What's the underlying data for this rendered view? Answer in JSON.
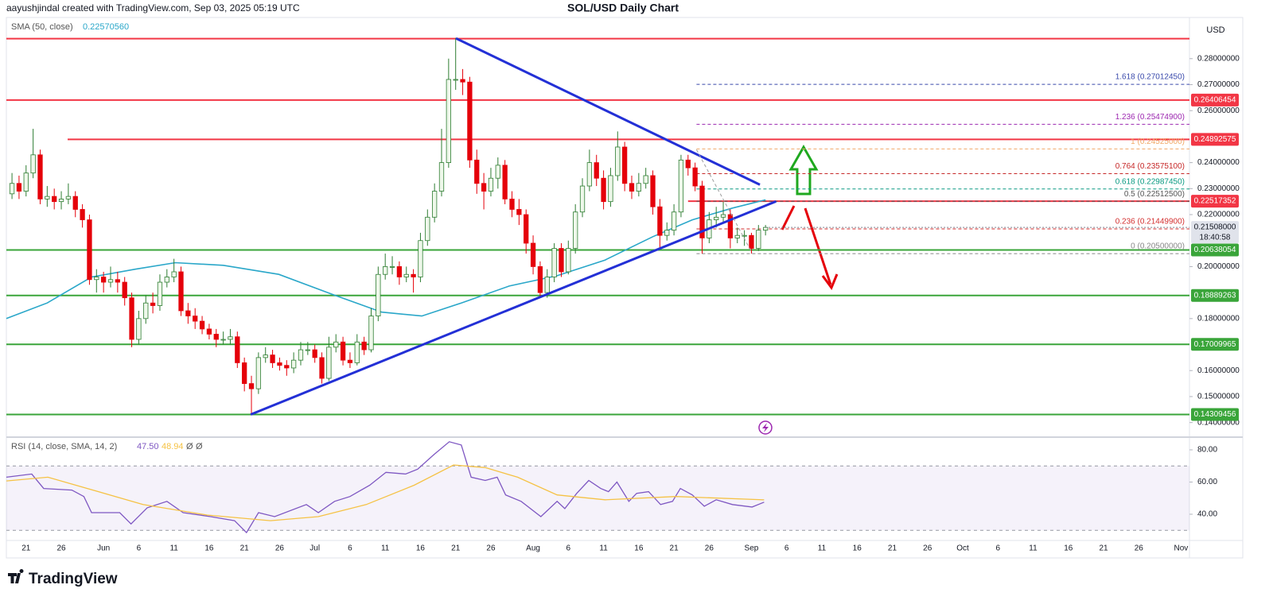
{
  "chart_data": {
    "type": "candlestick",
    "title": "SOL/USD Daily Chart",
    "attribution": "aayushjindal created with TradingView.com, Sep 03, 2025 05:19 UTC",
    "currency": "USD",
    "brand": "TradingView",
    "up_color": "#2e7d32",
    "up_fill": "#eef8ea",
    "down_color": "#e5000a",
    "xlim": [
      -0.8,
      167.2
    ],
    "xticks": [
      {
        "value": 2,
        "label": "21"
      },
      {
        "value": 7,
        "label": "26"
      },
      {
        "value": 13,
        "label": "Jun"
      },
      {
        "value": 18,
        "label": "6"
      },
      {
        "value": 23,
        "label": "11"
      },
      {
        "value": 28,
        "label": "16"
      },
      {
        "value": 33,
        "label": "21"
      },
      {
        "value": 38,
        "label": "26"
      },
      {
        "value": 43,
        "label": "Jul"
      },
      {
        "value": 48,
        "label": "6"
      },
      {
        "value": 53,
        "label": "11"
      },
      {
        "value": 58,
        "label": "16"
      },
      {
        "value": 63,
        "label": "21"
      },
      {
        "value": 68,
        "label": "26"
      },
      {
        "value": 74,
        "label": "Aug"
      },
      {
        "value": 79,
        "label": "6"
      },
      {
        "value": 84,
        "label": "11"
      },
      {
        "value": 89,
        "label": "16"
      },
      {
        "value": 94,
        "label": "21"
      },
      {
        "value": 99,
        "label": "26"
      },
      {
        "value": 105,
        "label": "Sep"
      },
      {
        "value": 110,
        "label": "6"
      },
      {
        "value": 115,
        "label": "11"
      },
      {
        "value": 120,
        "label": "16"
      },
      {
        "value": 125,
        "label": "21"
      },
      {
        "value": 130,
        "label": "26"
      },
      {
        "value": 135,
        "label": "Oct"
      },
      {
        "value": 140,
        "label": "6"
      },
      {
        "value": 145,
        "label": "11"
      },
      {
        "value": 150,
        "label": "16"
      },
      {
        "value": 155,
        "label": "21"
      },
      {
        "value": 160,
        "label": "26"
      },
      {
        "value": 166,
        "label": "Nov"
      }
    ],
    "ylim": [
      0.135,
      0.294
    ],
    "yticks": [
      {
        "value": 0.28,
        "label": "0.28000000"
      },
      {
        "value": 0.27,
        "label": "0.27000000"
      },
      {
        "value": 0.26,
        "label": "0.26000000"
      },
      {
        "value": 0.24,
        "label": "0.24000000"
      },
      {
        "value": 0.23,
        "label": "0.23000000"
      },
      {
        "value": 0.22,
        "label": "0.22000000"
      },
      {
        "value": 0.2,
        "label": "0.20000000"
      },
      {
        "value": 0.18,
        "label": "0.18000000"
      },
      {
        "value": 0.16,
        "label": "0.16000000"
      },
      {
        "value": 0.15,
        "label": "0.15000000"
      },
      {
        "value": 0.14,
        "label": "0.14000000"
      }
    ],
    "ohlc": [
      [
        0.228,
        0.236,
        0.226,
        0.232
      ],
      [
        0.232,
        0.235,
        0.226,
        0.229
      ],
      [
        0.229,
        0.239,
        0.227,
        0.236
      ],
      [
        0.236,
        0.253,
        0.234,
        0.243
      ],
      [
        0.243,
        0.245,
        0.224,
        0.226
      ],
      [
        0.226,
        0.231,
        0.223,
        0.227
      ],
      [
        0.227,
        0.23,
        0.222,
        0.225
      ],
      [
        0.225,
        0.229,
        0.222,
        0.226
      ],
      [
        0.226,
        0.232,
        0.224,
        0.227
      ],
      [
        0.227,
        0.229,
        0.219,
        0.222
      ],
      [
        0.222,
        0.224,
        0.215,
        0.218
      ],
      [
        0.218,
        0.22,
        0.193,
        0.195
      ],
      [
        0.195,
        0.199,
        0.19,
        0.196
      ],
      [
        0.196,
        0.198,
        0.19,
        0.194
      ],
      [
        0.194,
        0.2,
        0.192,
        0.195
      ],
      [
        0.195,
        0.198,
        0.19,
        0.194
      ],
      [
        0.194,
        0.196,
        0.185,
        0.188
      ],
      [
        0.188,
        0.19,
        0.169,
        0.172
      ],
      [
        0.172,
        0.183,
        0.17,
        0.18
      ],
      [
        0.18,
        0.189,
        0.178,
        0.186
      ],
      [
        0.186,
        0.19,
        0.182,
        0.185
      ],
      [
        0.185,
        0.197,
        0.183,
        0.194
      ],
      [
        0.194,
        0.199,
        0.192,
        0.196
      ],
      [
        0.196,
        0.203,
        0.194,
        0.198
      ],
      [
        0.198,
        0.2,
        0.181,
        0.183
      ],
      [
        0.183,
        0.186,
        0.178,
        0.181
      ],
      [
        0.181,
        0.184,
        0.176,
        0.179
      ],
      [
        0.179,
        0.181,
        0.174,
        0.176
      ],
      [
        0.176,
        0.178,
        0.172,
        0.174
      ],
      [
        0.174,
        0.176,
        0.169,
        0.172
      ],
      [
        0.172,
        0.175,
        0.17,
        0.172
      ],
      [
        0.172,
        0.176,
        0.17,
        0.173
      ],
      [
        0.173,
        0.175,
        0.161,
        0.163
      ],
      [
        0.163,
        0.165,
        0.152,
        0.155
      ],
      [
        0.155,
        0.158,
        0.143,
        0.153
      ],
      [
        0.153,
        0.167,
        0.151,
        0.165
      ],
      [
        0.165,
        0.169,
        0.163,
        0.166
      ],
      [
        0.166,
        0.168,
        0.161,
        0.163
      ],
      [
        0.163,
        0.165,
        0.16,
        0.162
      ],
      [
        0.162,
        0.164,
        0.158,
        0.161
      ],
      [
        0.161,
        0.167,
        0.159,
        0.164
      ],
      [
        0.164,
        0.171,
        0.162,
        0.168
      ],
      [
        0.168,
        0.171,
        0.166,
        0.168
      ],
      [
        0.168,
        0.17,
        0.163,
        0.165
      ],
      [
        0.165,
        0.167,
        0.155,
        0.157
      ],
      [
        0.157,
        0.173,
        0.156,
        0.169
      ],
      [
        0.169,
        0.174,
        0.167,
        0.171
      ],
      [
        0.171,
        0.173,
        0.162,
        0.164
      ],
      [
        0.164,
        0.167,
        0.161,
        0.163
      ],
      [
        0.163,
        0.174,
        0.162,
        0.171
      ],
      [
        0.171,
        0.173,
        0.166,
        0.168
      ],
      [
        0.168,
        0.184,
        0.167,
        0.181
      ],
      [
        0.181,
        0.2,
        0.179,
        0.197
      ],
      [
        0.197,
        0.205,
        0.195,
        0.2
      ],
      [
        0.2,
        0.204,
        0.197,
        0.2
      ],
      [
        0.2,
        0.202,
        0.193,
        0.196
      ],
      [
        0.196,
        0.2,
        0.194,
        0.197
      ],
      [
        0.197,
        0.199,
        0.19,
        0.196
      ],
      [
        0.196,
        0.213,
        0.194,
        0.21
      ],
      [
        0.21,
        0.222,
        0.208,
        0.219
      ],
      [
        0.219,
        0.232,
        0.217,
        0.229
      ],
      [
        0.229,
        0.253,
        0.227,
        0.24
      ],
      [
        0.24,
        0.28,
        0.238,
        0.272
      ],
      [
        0.272,
        0.288,
        0.268,
        0.272
      ],
      [
        0.272,
        0.276,
        0.266,
        0.271
      ],
      [
        0.271,
        0.273,
        0.238,
        0.241
      ],
      [
        0.241,
        0.245,
        0.228,
        0.232
      ],
      [
        0.232,
        0.236,
        0.222,
        0.229
      ],
      [
        0.229,
        0.238,
        0.227,
        0.234
      ],
      [
        0.234,
        0.242,
        0.23,
        0.239
      ],
      [
        0.239,
        0.241,
        0.224,
        0.226
      ],
      [
        0.226,
        0.229,
        0.219,
        0.222
      ],
      [
        0.222,
        0.226,
        0.216,
        0.22
      ],
      [
        0.22,
        0.222,
        0.205,
        0.209
      ],
      [
        0.209,
        0.212,
        0.197,
        0.2
      ],
      [
        0.2,
        0.202,
        0.188,
        0.19
      ],
      [
        0.19,
        0.199,
        0.188,
        0.196
      ],
      [
        0.196,
        0.209,
        0.194,
        0.207
      ],
      [
        0.207,
        0.209,
        0.196,
        0.198
      ],
      [
        0.198,
        0.21,
        0.197,
        0.207
      ],
      [
        0.207,
        0.224,
        0.205,
        0.221
      ],
      [
        0.221,
        0.234,
        0.219,
        0.231
      ],
      [
        0.231,
        0.245,
        0.229,
        0.24
      ],
      [
        0.24,
        0.243,
        0.231,
        0.234
      ],
      [
        0.234,
        0.237,
        0.222,
        0.225
      ],
      [
        0.225,
        0.238,
        0.223,
        0.235
      ],
      [
        0.235,
        0.252,
        0.233,
        0.246
      ],
      [
        0.246,
        0.248,
        0.229,
        0.232
      ],
      [
        0.232,
        0.235,
        0.226,
        0.229
      ],
      [
        0.229,
        0.236,
        0.227,
        0.232
      ],
      [
        0.232,
        0.238,
        0.23,
        0.235
      ],
      [
        0.235,
        0.237,
        0.22,
        0.223
      ],
      [
        0.223,
        0.226,
        0.207,
        0.212
      ],
      [
        0.212,
        0.217,
        0.21,
        0.214
      ],
      [
        0.214,
        0.224,
        0.212,
        0.221
      ],
      [
        0.221,
        0.243,
        0.219,
        0.241
      ],
      [
        0.241,
        0.243,
        0.235,
        0.238
      ],
      [
        0.238,
        0.24,
        0.229,
        0.231
      ],
      [
        0.231,
        0.233,
        0.205,
        0.211
      ],
      [
        0.211,
        0.221,
        0.209,
        0.218
      ],
      [
        0.218,
        0.223,
        0.215,
        0.219
      ],
      [
        0.219,
        0.225,
        0.217,
        0.22
      ],
      [
        0.22,
        0.222,
        0.207,
        0.211
      ],
      [
        0.211,
        0.215,
        0.209,
        0.212
      ],
      [
        0.212,
        0.214,
        0.208,
        0.212
      ],
      [
        0.212,
        0.213,
        0.205,
        0.207
      ],
      [
        0.207,
        0.216,
        0.206,
        0.214
      ],
      [
        0.214,
        0.216,
        0.212,
        0.21508
      ]
    ],
    "sma": {
      "name": "SMA (50, close)",
      "value_label": "0.22570560",
      "color": "#2aa7c9",
      "x": [
        -0.8,
        5,
        11.3,
        17.5,
        23.2,
        30,
        37.9,
        45.8,
        52.5,
        58.2,
        63.8,
        70.6,
        77.4,
        84.2,
        91,
        96.6,
        102.3,
        107
      ],
      "values": [
        0.18,
        0.186,
        0.196,
        0.199,
        0.2015,
        0.2005,
        0.197,
        0.189,
        0.1825,
        0.181,
        0.186,
        0.1925,
        0.1965,
        0.2025,
        0.2115,
        0.218,
        0.2225,
        0.2257056
      ]
    },
    "levels": [
      {
        "value": 0.2877,
        "color": "#f23645",
        "x0": -0.8
      },
      {
        "value": 0.26406454,
        "color": "#f23645",
        "x0": -0.8
      },
      {
        "value": 0.24892575,
        "color": "#f23645",
        "x0": 7.9
      },
      {
        "value": 0.22517352,
        "color": "#f23645",
        "x0": 96
      },
      {
        "value": 0.20638054,
        "color": "#3aa53a",
        "x0": -0.8
      },
      {
        "value": 0.18889263,
        "color": "#3aa53a",
        "x0": -0.8
      },
      {
        "value": 0.17009965,
        "color": "#3aa53a",
        "x0": -0.8
      },
      {
        "value": 0.14309456,
        "color": "#3aa53a",
        "x0": -0.8
      }
    ],
    "last_price": {
      "value": 0.21508,
      "label": "0.21508000",
      "countdown": "18:40:58"
    },
    "fib": {
      "x0": 97.2,
      "levels": [
        {
          "label": "1.618 (0.27012450)",
          "value": 0.2701245,
          "color": "#3949ab"
        },
        {
          "label": "1.236 (0.25474900)",
          "value": 0.254749,
          "color": "#9c27b0"
        },
        {
          "label": "1 (0.24525000)",
          "value": 0.24525,
          "color": "#f0a868"
        },
        {
          "label": "0.764 (0.23575100)",
          "value": 0.235751,
          "color": "#c62828"
        },
        {
          "label": "0.618 (0.22987450)",
          "value": 0.2298745,
          "color": "#089981"
        },
        {
          "label": "0.5 (0.22512500)",
          "value": 0.225125,
          "color": "#555555"
        },
        {
          "label": "0.236 (0.21449900)",
          "value": 0.214499,
          "color": "#d32f2f"
        },
        {
          "label": "0 (0.20500000)",
          "value": 0.205,
          "color": "#888888"
        }
      ]
    },
    "trendlines": [
      {
        "x": [
          33.9,
          108.5
        ],
        "y": [
          0.1431,
          0.2251
        ],
        "color": "#2330d6"
      },
      {
        "x": [
          63.05,
          106.2
        ],
        "y": [
          0.2878,
          0.2315
        ],
        "color": "#2330d6"
      },
      {
        "x": [
          97.2,
          105.1
        ],
        "y": [
          0.245,
          0.2052
        ],
        "color": "#9e9e9e",
        "dashed": true
      }
    ],
    "rsi": {
      "title": "RSI (14, close, SMA, 14, 2)",
      "ylim": [
        24.7,
        86.4
      ],
      "yticks": [
        {
          "value": 80,
          "label": "80.00"
        },
        {
          "value": 60,
          "label": "60.00"
        },
        {
          "value": 40,
          "label": "40.00"
        }
      ],
      "band": [
        30,
        70
      ],
      "extras": [
        "Ø",
        "Ø"
      ],
      "series": [
        {
          "color": "#7e57c2",
          "value_label": "47.50",
          "x": [
            -0.8,
            2.8,
            4.5,
            8.5,
            10.2,
            11.3,
            15.3,
            16.9,
            19.2,
            22,
            24.3,
            28.2,
            31.6,
            33.3,
            35,
            37.3,
            41.8,
            43.5,
            45.8,
            48,
            50.8,
            53.1,
            55.9,
            57.6,
            59.9,
            62.1,
            63.8,
            65.2,
            67.2,
            68.9,
            70.1,
            72.3,
            75.1,
            77.4,
            78.5,
            80.2,
            81.9,
            83.6,
            84.7,
            85.9,
            87.6,
            88.7,
            90.4,
            92.1,
            93.8,
            94.9,
            96.6,
            98.3,
            100,
            102.3,
            105.1,
            106.8
          ],
          "values": [
            63,
            65,
            56,
            55,
            51,
            41,
            41,
            34,
            44,
            48,
            41,
            38.5,
            36,
            28.6,
            41,
            38.5,
            46,
            41,
            48,
            51,
            58,
            66,
            65,
            68,
            77,
            85,
            83,
            63,
            61,
            63,
            52,
            48,
            38.5,
            48,
            43.5,
            53,
            61,
            56,
            54,
            60,
            48,
            53,
            54,
            46,
            48,
            56,
            52,
            45,
            49,
            46,
            44.5,
            47.5
          ]
        },
        {
          "color": "#f5c244",
          "value_label": "48.94",
          "x": [
            -0.8,
            5.1,
            10.7,
            18.6,
            27.7,
            36.7,
            43.5,
            50.3,
            57.1,
            62.7,
            67.2,
            71.8,
            77.4,
            84.2,
            94.3,
            106.8
          ],
          "values": [
            60.7,
            63,
            56,
            46,
            39.5,
            36,
            38.5,
            46,
            58,
            70.6,
            69,
            63,
            52,
            49,
            51,
            48.94
          ]
        }
      ]
    }
  }
}
